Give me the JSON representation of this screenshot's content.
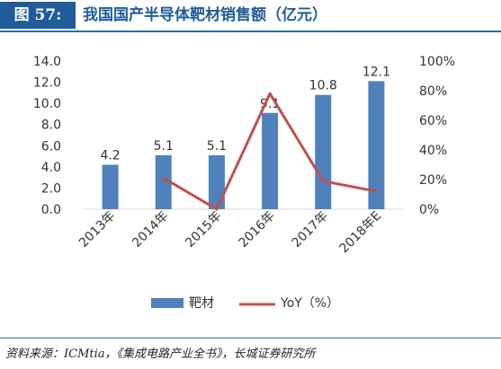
{
  "header": {
    "figure_label": "图 57:",
    "title": "我国国产半导体靶材销售额（亿元）"
  },
  "source": "资料来源：ICMtia，《集成电路产业全书》，长城证券研究所",
  "chart_data": {
    "type": "bar",
    "categories": [
      "2013年",
      "2014年",
      "2015年",
      "2016年",
      "2017年",
      "2018年E"
    ],
    "series": [
      {
        "name": "靶材",
        "type": "bar",
        "axis": "left",
        "color": "#4f81bd",
        "values": [
          4.2,
          5.1,
          5.1,
          9.1,
          10.8,
          12.1
        ],
        "data_labels": [
          "4.2",
          "5.1",
          "5.1",
          "9.1",
          "10.8",
          "12.1"
        ]
      },
      {
        "name": "YoY（%）",
        "type": "line",
        "axis": "right",
        "color": "#c0504d",
        "values": [
          null,
          21,
          0,
          78,
          19,
          12
        ]
      }
    ],
    "y_left": {
      "min": 0,
      "max": 14,
      "step": 2,
      "ticks": [
        "0.0",
        "2.0",
        "4.0",
        "6.0",
        "8.0",
        "10.0",
        "12.0",
        "14.0"
      ]
    },
    "y_right": {
      "min": 0,
      "max": 100,
      "step": 20,
      "ticks": [
        "0%",
        "20%",
        "40%",
        "60%",
        "80%",
        "100%"
      ]
    },
    "grid": false,
    "legend": "bottom"
  }
}
